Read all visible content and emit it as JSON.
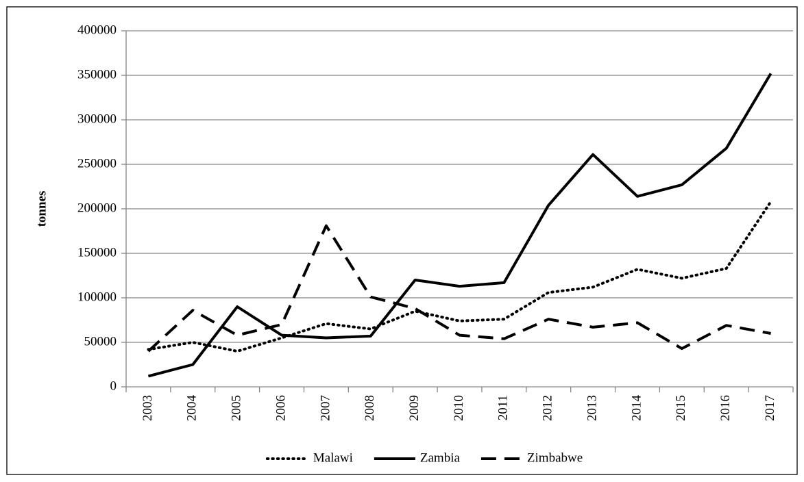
{
  "chart_data": {
    "type": "line",
    "y_label": "tonnes",
    "categories": [
      "2003",
      "2004",
      "2005",
      "2006",
      "2007",
      "2008",
      "2009",
      "2010",
      "2011",
      "2012",
      "2013",
      "2014",
      "2015",
      "2016",
      "2017"
    ],
    "series": [
      {
        "name": "Malawi",
        "color": "#000000",
        "style": "dotted",
        "values": [
          42000,
          50000,
          40000,
          55000,
          71000,
          65000,
          85000,
          74000,
          76000,
          106000,
          112000,
          132000,
          122000,
          133000,
          208000
        ]
      },
      {
        "name": "Zambia",
        "color": "#000000",
        "style": "solid",
        "values": [
          12000,
          25000,
          90000,
          58000,
          55000,
          57000,
          120000,
          113000,
          117000,
          204000,
          261000,
          214000,
          227000,
          268000,
          352000
        ]
      },
      {
        "name": "Zimbabwe",
        "color": "#000000",
        "style": "dashed",
        "values": [
          40000,
          86000,
          58000,
          70000,
          181000,
          101000,
          88000,
          58000,
          54000,
          76000,
          67000,
          72000,
          43000,
          69000,
          60000
        ]
      }
    ],
    "ylim": [
      0,
      400000
    ],
    "yticks": [
      0,
      50000,
      100000,
      150000,
      200000,
      250000,
      300000,
      350000,
      400000
    ],
    "grid": true,
    "legend": "bottom"
  }
}
